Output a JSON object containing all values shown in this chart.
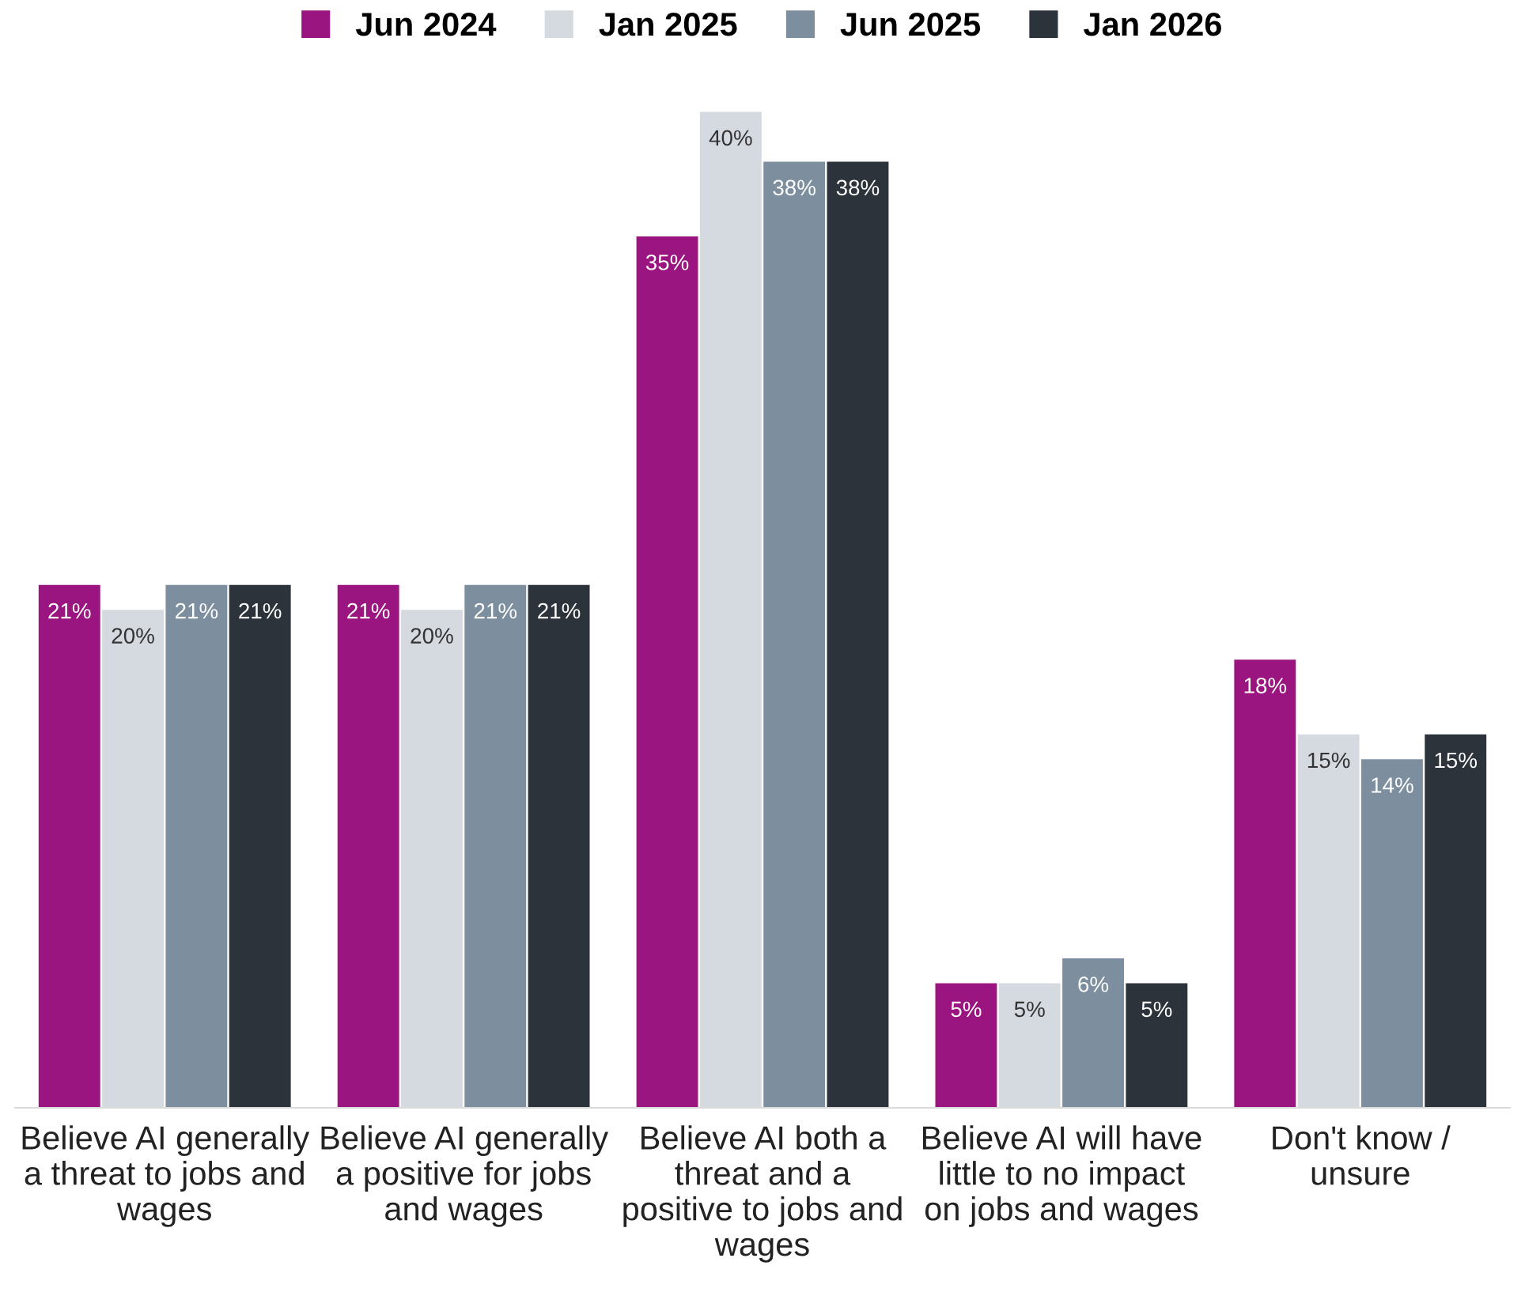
{
  "chart_data": {
    "type": "bar",
    "categories": [
      "Believe AI generally\na threat to jobs and\nwages",
      "Believe AI generally\na positive for jobs\nand wages",
      "Believe AI both a\nthreat and a\npositive to jobs and\nwages",
      "Believe AI will have\nlittle to no impact\non jobs and wages",
      "Don't know /\nunsure"
    ],
    "series": [
      {
        "name": "Jun 2024",
        "color": "#9b1580",
        "values": [
          21,
          21,
          35,
          5,
          18
        ],
        "value_labels": [
          "21%",
          "21%",
          "35%",
          "5%",
          "18%"
        ]
      },
      {
        "name": "Jan 2025",
        "color": "#d5d9e0",
        "values": [
          20,
          20,
          40,
          5,
          15
        ],
        "value_labels": [
          "20%",
          "20%",
          "40%",
          "5%",
          "15%"
        ]
      },
      {
        "name": "Jun 2025",
        "color": "#7d8f9e",
        "values": [
          21,
          21,
          38,
          6,
          14
        ],
        "value_labels": [
          "21%",
          "21%",
          "38%",
          "6%",
          "14%"
        ]
      },
      {
        "name": "Jan 2026",
        "color": "#2c333b",
        "values": [
          21,
          21,
          38,
          5,
          15
        ],
        "value_labels": [
          "21%",
          "21%",
          "38%",
          "5%",
          "15%"
        ]
      }
    ],
    "legend": "top",
    "grid": false,
    "tick_labels": "x"
  }
}
